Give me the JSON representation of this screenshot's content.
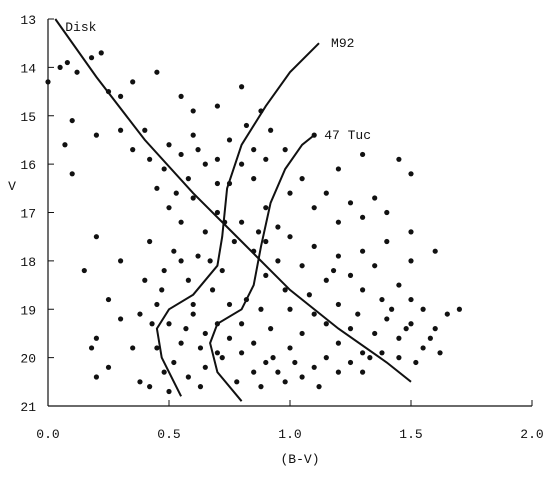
{
  "chart_data": {
    "type": "scatter",
    "xlabel": "(B-V)",
    "ylabel": "V",
    "xlim": [
      0,
      2
    ],
    "ylim": [
      21,
      13
    ],
    "xticks": [
      {
        "value": 0,
        "label": "0.0"
      },
      0.5,
      {
        "value": 1,
        "label": "1.0"
      },
      1.5,
      {
        "value": 2,
        "label": "2.0"
      }
    ],
    "yticks": [
      13,
      14,
      15,
      16,
      17,
      18,
      19,
      20,
      21
    ],
    "color": "#111111",
    "points": [
      [
        0.0,
        14.3
      ],
      [
        0.05,
        14.0
      ],
      [
        0.08,
        13.9
      ],
      [
        0.12,
        14.1
      ],
      [
        0.18,
        13.8
      ],
      [
        0.22,
        13.7
      ],
      [
        0.25,
        14.5
      ],
      [
        0.3,
        14.6
      ],
      [
        0.35,
        14.3
      ],
      [
        0.45,
        14.1
      ],
      [
        0.1,
        15.1
      ],
      [
        0.07,
        15.6
      ],
      [
        0.1,
        16.2
      ],
      [
        0.2,
        15.4
      ],
      [
        0.3,
        15.3
      ],
      [
        0.35,
        15.7
      ],
      [
        0.4,
        15.3
      ],
      [
        0.42,
        15.9
      ],
      [
        0.5,
        15.6
      ],
      [
        0.55,
        15.8
      ],
      [
        0.6,
        15.4
      ],
      [
        0.65,
        16.0
      ],
      [
        0.7,
        15.9
      ],
      [
        0.75,
        15.5
      ],
      [
        0.8,
        16.0
      ],
      [
        0.85,
        15.7
      ],
      [
        0.9,
        15.9
      ],
      [
        0.98,
        15.7
      ],
      [
        1.1,
        15.4
      ],
      [
        1.2,
        16.1
      ],
      [
        1.3,
        15.8
      ],
      [
        1.45,
        15.9
      ],
      [
        1.5,
        16.2
      ],
      [
        0.55,
        14.6
      ],
      [
        0.6,
        14.9
      ],
      [
        0.8,
        14.4
      ],
      [
        0.2,
        17.5
      ],
      [
        0.15,
        18.2
      ],
      [
        0.3,
        18.0
      ],
      [
        0.25,
        18.8
      ],
      [
        0.2,
        19.6
      ],
      [
        0.18,
        19.8
      ],
      [
        0.25,
        20.2
      ],
      [
        0.2,
        20.4
      ],
      [
        0.3,
        19.2
      ],
      [
        0.35,
        19.8
      ],
      [
        0.38,
        20.5
      ],
      [
        0.45,
        16.5
      ],
      [
        0.5,
        16.9
      ],
      [
        0.55,
        17.2
      ],
      [
        0.6,
        16.7
      ],
      [
        0.65,
        17.4
      ],
      [
        0.7,
        17.0
      ],
      [
        0.52,
        17.8
      ],
      [
        0.48,
        18.2
      ],
      [
        0.58,
        18.4
      ],
      [
        0.62,
        17.9
      ],
      [
        0.68,
        18.6
      ],
      [
        0.72,
        18.2
      ],
      [
        0.45,
        18.9
      ],
      [
        0.5,
        19.3
      ],
      [
        0.55,
        19.7
      ],
      [
        0.6,
        19.1
      ],
      [
        0.65,
        19.5
      ],
      [
        0.7,
        19.9
      ],
      [
        0.52,
        20.1
      ],
      [
        0.58,
        20.4
      ],
      [
        0.63,
        20.6
      ],
      [
        0.48,
        20.3
      ],
      [
        0.45,
        19.8
      ],
      [
        0.42,
        17.6
      ],
      [
        0.4,
        18.4
      ],
      [
        0.38,
        19.1
      ],
      [
        0.75,
        18.9
      ],
      [
        0.8,
        19.3
      ],
      [
        0.85,
        19.7
      ],
      [
        0.9,
        20.1
      ],
      [
        0.78,
        20.5
      ],
      [
        0.88,
        20.6
      ],
      [
        0.95,
        20.3
      ],
      [
        1.0,
        19.8
      ],
      [
        1.05,
        20.4
      ],
      [
        1.1,
        20.2
      ],
      [
        1.15,
        20.0
      ],
      [
        1.2,
        19.7
      ],
      [
        1.25,
        20.1
      ],
      [
        1.3,
        19.9
      ],
      [
        1.35,
        19.5
      ],
      [
        1.4,
        19.2
      ],
      [
        1.45,
        19.6
      ],
      [
        1.5,
        19.3
      ],
      [
        1.55,
        19.0
      ],
      [
        1.6,
        19.4
      ],
      [
        1.65,
        19.1
      ],
      [
        1.7,
        19.0
      ],
      [
        1.55,
        19.8
      ],
      [
        1.45,
        20.0
      ],
      [
        1.38,
        19.9
      ],
      [
        0.8,
        17.2
      ],
      [
        0.85,
        17.8
      ],
      [
        0.9,
        18.3
      ],
      [
        0.95,
        18.0
      ],
      [
        1.0,
        17.5
      ],
      [
        1.05,
        18.1
      ],
      [
        1.1,
        17.7
      ],
      [
        1.15,
        18.4
      ],
      [
        1.2,
        17.9
      ],
      [
        1.25,
        18.3
      ],
      [
        1.3,
        17.8
      ],
      [
        1.35,
        18.1
      ],
      [
        1.4,
        17.6
      ],
      [
        1.45,
        18.5
      ],
      [
        1.5,
        18.8
      ],
      [
        1.42,
        19.0
      ],
      [
        1.3,
        18.6
      ],
      [
        1.2,
        18.9
      ],
      [
        1.1,
        19.1
      ],
      [
        1.0,
        19.0
      ],
      [
        0.92,
        19.4
      ],
      [
        1.05,
        19.5
      ],
      [
        1.15,
        19.3
      ],
      [
        1.25,
        19.4
      ],
      [
        0.9,
        16.9
      ],
      [
        1.0,
        16.6
      ],
      [
        1.1,
        16.9
      ],
      [
        1.2,
        17.2
      ],
      [
        1.3,
        17.1
      ],
      [
        1.4,
        17.0
      ],
      [
        1.5,
        17.4
      ],
      [
        1.6,
        17.8
      ],
      [
        1.5,
        18.0
      ],
      [
        1.35,
        16.7
      ],
      [
        0.75,
        16.4
      ],
      [
        0.85,
        16.3
      ],
      [
        0.95,
        17.3
      ],
      [
        1.05,
        16.3
      ],
      [
        1.15,
        16.6
      ],
      [
        1.25,
        16.8
      ],
      [
        0.55,
        18.0
      ],
      [
        0.6,
        18.9
      ],
      [
        0.7,
        19.3
      ],
      [
        0.75,
        19.6
      ],
      [
        0.82,
        18.8
      ],
      [
        0.88,
        19.0
      ],
      [
        0.65,
        20.2
      ],
      [
        0.72,
        20.0
      ],
      [
        0.8,
        19.9
      ],
      [
        0.85,
        20.3
      ],
      [
        0.98,
        20.5
      ],
      [
        1.12,
        20.6
      ],
      [
        1.2,
        20.3
      ],
      [
        1.3,
        20.3
      ],
      [
        0.42,
        20.6
      ],
      [
        0.5,
        20.7
      ],
      [
        0.58,
        16.3
      ],
      [
        0.48,
        16.1
      ],
      [
        0.62,
        15.7
      ],
      [
        0.7,
        16.4
      ],
      [
        0.67,
        18.0
      ],
      [
        0.77,
        17.6
      ],
      [
        0.73,
        17.2
      ],
      [
        0.9,
        17.6
      ],
      [
        0.98,
        18.6
      ],
      [
        1.08,
        18.7
      ],
      [
        1.18,
        18.2
      ],
      [
        1.28,
        19.1
      ],
      [
        1.38,
        18.8
      ],
      [
        1.48,
        19.4
      ],
      [
        1.58,
        19.6
      ],
      [
        1.62,
        19.9
      ],
      [
        1.52,
        20.1
      ],
      [
        1.33,
        20.0
      ],
      [
        1.02,
        20.1
      ],
      [
        0.93,
        20.0
      ],
      [
        0.87,
        17.4
      ],
      [
        0.63,
        19.8
      ],
      [
        0.57,
        19.4
      ],
      [
        0.47,
        18.6
      ],
      [
        0.43,
        19.3
      ],
      [
        0.53,
        16.6
      ],
      [
        0.82,
        15.2
      ],
      [
        0.88,
        14.9
      ],
      [
        0.7,
        14.8
      ],
      [
        0.92,
        15.3
      ]
    ],
    "curves": [
      {
        "name": "Disk",
        "color": "#111111",
        "x": [
          0.03,
          0.2,
          0.4,
          0.6,
          0.8,
          1.0,
          1.2,
          1.4,
          1.5
        ],
        "y": [
          13,
          14.2,
          15.5,
          16.6,
          17.6,
          18.6,
          19.4,
          20.1,
          20.5
        ]
      },
      {
        "name": "M92",
        "color": "#111111",
        "x": [
          0.55,
          0.47,
          0.45,
          0.5,
          0.6,
          0.7,
          0.72,
          0.74,
          0.8,
          0.9,
          1.0,
          1.12
        ],
        "y": [
          20.8,
          20.0,
          19.4,
          19.0,
          18.7,
          18.1,
          17.5,
          16.5,
          15.6,
          14.8,
          14.1,
          13.5
        ]
      },
      {
        "name": "47 Tuc",
        "color": "#111111",
        "x": [
          0.8,
          0.7,
          0.67,
          0.7,
          0.8,
          0.85,
          0.88,
          0.92,
          0.98,
          1.05,
          1.1
        ],
        "y": [
          20.9,
          20.3,
          19.7,
          19.3,
          19.0,
          18.5,
          17.7,
          16.8,
          16.1,
          15.6,
          15.4
        ]
      }
    ]
  }
}
